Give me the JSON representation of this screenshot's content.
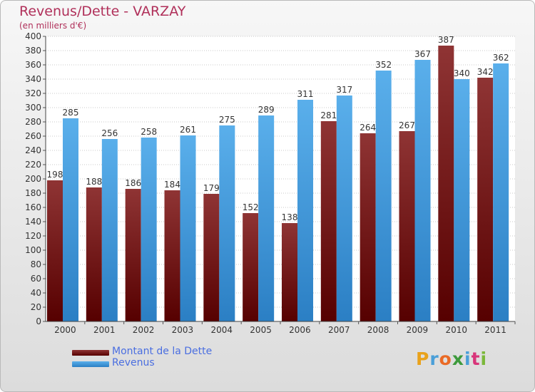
{
  "chart_data": {
    "type": "bar",
    "title": "Revenus/Dette - VARZAY",
    "subtitle": "(en milliers d'€)",
    "categories": [
      "2000",
      "2001",
      "2002",
      "2003",
      "2004",
      "2005",
      "2006",
      "2007",
      "2008",
      "2009",
      "2010",
      "2011"
    ],
    "series": [
      {
        "name": "Montant de la Dette",
        "color": "#8b1a1a",
        "values": [
          198,
          188,
          186,
          184,
          179,
          152,
          138,
          281,
          264,
          267,
          387,
          342
        ]
      },
      {
        "name": "Revenus",
        "color": "#3a96dd",
        "values": [
          285,
          256,
          258,
          261,
          275,
          289,
          311,
          317,
          352,
          367,
          340,
          362
        ]
      }
    ],
    "ylim": [
      0,
      400
    ],
    "ytick_step": 20,
    "grid": true,
    "legend_position": "bottom-left"
  },
  "logo": {
    "text": "Proxiti",
    "letter_colors": [
      "#e9a21b",
      "#4a9fd8",
      "#ea6a25",
      "#3d9a3c",
      "#4a9fd8",
      "#d8357a",
      "#7bb83a"
    ]
  }
}
